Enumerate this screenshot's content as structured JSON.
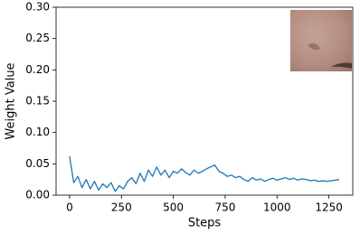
{
  "chart_data": {
    "type": "line",
    "x_label": "Steps",
    "y_label": "Weight Value",
    "x": [
      0,
      20,
      40,
      60,
      80,
      100,
      120,
      140,
      160,
      180,
      200,
      220,
      240,
      260,
      280,
      300,
      320,
      340,
      360,
      380,
      400,
      420,
      440,
      460,
      480,
      500,
      520,
      540,
      560,
      580,
      600,
      620,
      640,
      660,
      680,
      700,
      720,
      740,
      760,
      780,
      800,
      820,
      840,
      860,
      880,
      900,
      920,
      940,
      960,
      980,
      1000,
      1020,
      1040,
      1060,
      1080,
      1100,
      1120,
      1140,
      1160,
      1180,
      1200,
      1220,
      1240,
      1260,
      1280,
      1300
    ],
    "series": [
      {
        "color": "#1f77b4",
        "values": [
          0.062,
          0.02,
          0.03,
          0.012,
          0.025,
          0.01,
          0.022,
          0.008,
          0.018,
          0.012,
          0.02,
          0.006,
          0.015,
          0.01,
          0.022,
          0.028,
          0.018,
          0.035,
          0.022,
          0.04,
          0.03,
          0.045,
          0.032,
          0.04,
          0.028,
          0.038,
          0.035,
          0.042,
          0.036,
          0.032,
          0.04,
          0.035,
          0.038,
          0.042,
          0.045,
          0.048,
          0.038,
          0.035,
          0.03,
          0.032,
          0.028,
          0.03,
          0.025,
          0.022,
          0.028,
          0.024,
          0.026,
          0.022,
          0.025,
          0.027,
          0.024,
          0.026,
          0.028,
          0.025,
          0.027,
          0.024,
          0.026,
          0.025,
          0.023,
          0.024,
          0.022,
          0.023,
          0.022,
          0.023,
          0.024,
          0.025
        ]
      }
    ],
    "xlim": [
      -65,
      1365
    ],
    "ylim": [
      0,
      0.3
    ],
    "xticks": [
      0,
      250,
      500,
      750,
      1000,
      1250
    ],
    "yticks": [
      {
        "value": 0,
        "label": "0.00"
      },
      {
        "value": 0.05,
        "label": "0.05"
      },
      {
        "value": 0.1,
        "label": "0.10"
      },
      {
        "value": 0.15,
        "label": "0.15"
      },
      {
        "value": 0.2,
        "label": "0.20"
      },
      {
        "value": 0.25,
        "label": "0.25"
      },
      {
        "value": 0.3,
        "label": "0.30"
      }
    ]
  }
}
